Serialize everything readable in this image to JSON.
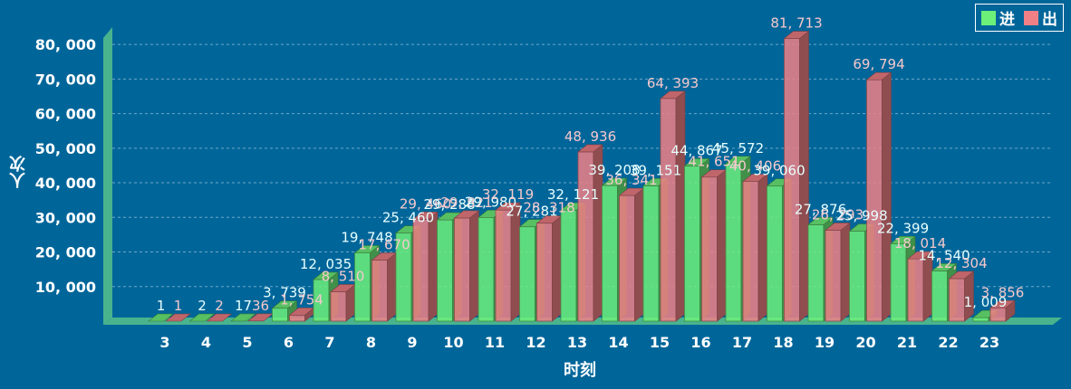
{
  "chart_data": {
    "type": "bar",
    "xlabel": "时刻",
    "ylabel": "人次",
    "categories": [
      "3",
      "4",
      "5",
      "6",
      "7",
      "8",
      "9",
      "10",
      "11",
      "12",
      "13",
      "14",
      "15",
      "16",
      "17",
      "18",
      "19",
      "20",
      "21",
      "22",
      "23"
    ],
    "ylim": [
      0,
      85000
    ],
    "yticks": [
      10000,
      20000,
      30000,
      40000,
      50000,
      60000,
      70000,
      80000
    ],
    "ytick_labels": [
      "10, 000",
      "20, 000",
      "30, 000",
      "40, 000",
      "50, 000",
      "60, 000",
      "70, 000",
      "80, 000"
    ],
    "grid": true,
    "legend_position": "top-right",
    "series": [
      {
        "name": "进",
        "color": "#6df07a",
        "values": [
          1,
          2,
          17,
          3739,
          12035,
          19748,
          25460,
          29288,
          29980,
          27281,
          32121,
          39208,
          39151,
          44867,
          45572,
          39060,
          27876,
          25998,
          22399,
          14540,
          1009
        ],
        "labels": [
          "1",
          "2",
          "17",
          "3, 739",
          "12, 035",
          "19, 748",
          "25, 460",
          "29, 288",
          "29, 980",
          "27, 281",
          "32, 121",
          "39, 208",
          "39, 151",
          "44, 867",
          "45, 572",
          "39, 060",
          "27, 876",
          "25, 998",
          "22, 399",
          "14, 540",
          "1, 009"
        ]
      },
      {
        "name": "出",
        "color": "#f08086",
        "values": [
          1,
          2,
          36,
          1754,
          8510,
          17670,
          29460,
          29821,
          32119,
          28318,
          48936,
          36341,
          64393,
          41651,
          40406,
          81713,
          26293,
          69794,
          18014,
          12304,
          3856
        ],
        "labels": [
          "1",
          "2",
          "36",
          "1, 754",
          "8, 510",
          "17, 670",
          "29, 460",
          "29, 821",
          "32, 119",
          "28, 318",
          "48, 936",
          "36, 341",
          "64, 393",
          "41, 651",
          "40, 406",
          "81, 713",
          "26, 293",
          "69, 794",
          "18, 014",
          "12, 304",
          "3, 856"
        ]
      }
    ]
  }
}
